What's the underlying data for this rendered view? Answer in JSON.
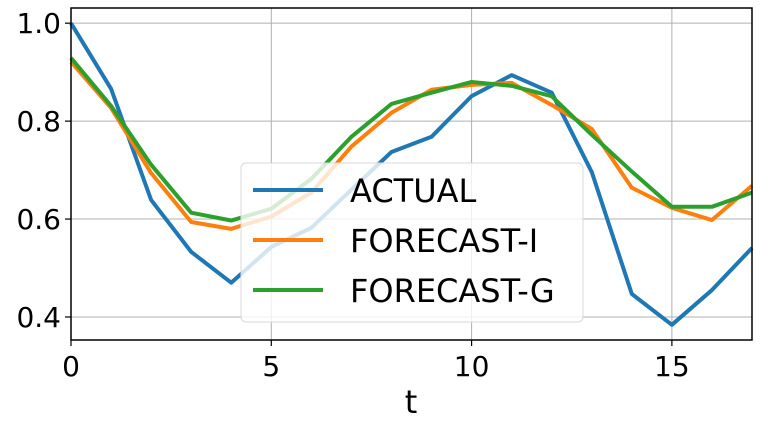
{
  "chart_data": {
    "type": "line",
    "title": "",
    "xlabel": "t",
    "ylabel": "",
    "xlim": [
      0,
      17
    ],
    "ylim": [
      0.353,
      1.031
    ],
    "xticks": [
      0,
      5,
      10,
      15
    ],
    "xtick_labels": [
      "0",
      "5",
      "10",
      "15"
    ],
    "yticks": [
      0.4,
      0.6,
      0.8,
      1.0
    ],
    "ytick_labels": [
      "0.4",
      "0.6",
      "0.8",
      "1.0"
    ],
    "grid": true,
    "legend_position": "center-bottom",
    "x": [
      0,
      1,
      2,
      3,
      4,
      5,
      6,
      7,
      8,
      9,
      10,
      11,
      12,
      13,
      14,
      15,
      16,
      17
    ],
    "series": [
      {
        "name": "ACTUAL",
        "color": "#1f77b4",
        "values": [
          1.0,
          0.866,
          0.639,
          0.533,
          0.47,
          0.543,
          0.582,
          0.66,
          0.737,
          0.768,
          0.851,
          0.894,
          0.858,
          0.696,
          0.447,
          0.384,
          0.455,
          0.541
        ]
      },
      {
        "name": "FORECAST-I",
        "color": "#ff7f0e",
        "values": [
          0.921,
          0.827,
          0.694,
          0.594,
          0.58,
          0.605,
          0.654,
          0.748,
          0.817,
          0.864,
          0.874,
          0.878,
          0.833,
          0.784,
          0.664,
          0.623,
          0.598,
          0.668
        ]
      },
      {
        "name": "FORECAST-G",
        "color": "#2ca02c",
        "values": [
          0.929,
          0.831,
          0.711,
          0.613,
          0.597,
          0.621,
          0.682,
          0.768,
          0.835,
          0.858,
          0.88,
          0.872,
          0.851,
          0.772,
          0.697,
          0.625,
          0.625,
          0.654
        ]
      }
    ]
  }
}
